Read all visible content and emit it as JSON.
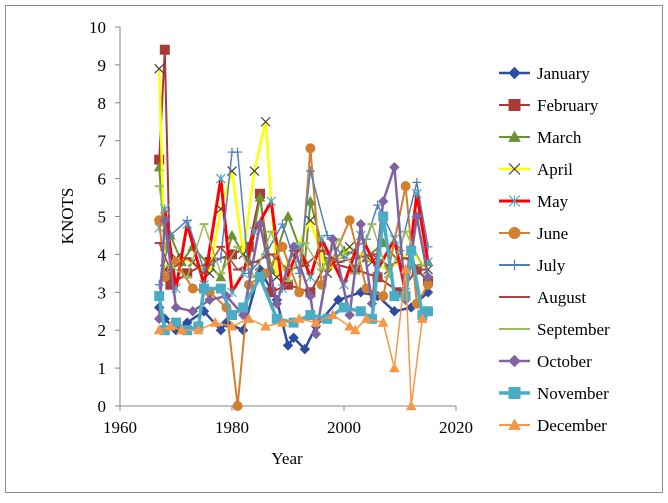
{
  "chart_data": {
    "type": "line",
    "title": "",
    "xlabel": "Year",
    "ylabel": "KNOTS",
    "xlim": [
      1960,
      2020
    ],
    "ylim": [
      0,
      10
    ],
    "xticks": [
      1960,
      1980,
      2000,
      2020
    ],
    "yticks": [
      0,
      1,
      2,
      3,
      4,
      5,
      6,
      7,
      8,
      9,
      10
    ],
    "grid": false,
    "legend_position": "right",
    "series": [
      {
        "name": "January",
        "color": "#2e4da0",
        "marker": "diamond",
        "line_width": 2.5,
        "x": [
          1967,
          1968,
          1970,
          1972,
          1975,
          1978,
          1979,
          1982,
          1985,
          1988,
          1990,
          1991,
          1993,
          1995,
          1999,
          2003,
          2006,
          2009,
          2012,
          2015
        ],
        "y": [
          2.6,
          2.3,
          2.0,
          2.2,
          2.5,
          2.0,
          2.2,
          2.0,
          3.6,
          2.8,
          1.6,
          1.8,
          1.5,
          2.1,
          2.8,
          3.0,
          2.9,
          2.5,
          2.6,
          3.0
        ]
      },
      {
        "name": "February",
        "color": "#a83a38",
        "marker": "square",
        "line_width": 2,
        "x": [
          1967,
          1968,
          1969,
          1972,
          1976,
          1980,
          1983,
          1985,
          1987,
          1990,
          1994,
          1997,
          2002,
          2006,
          2010,
          2013,
          2015
        ],
        "y": [
          6.5,
          9.4,
          3.2,
          3.5,
          3.8,
          4.0,
          4.2,
          5.6,
          3.0,
          3.2,
          3.0,
          3.8,
          3.6,
          3.4,
          3.0,
          3.6,
          3.3
        ]
      },
      {
        "name": "March",
        "color": "#6d9233",
        "marker": "triangle",
        "line_width": 2,
        "x": [
          1967,
          1968,
          1969,
          1971,
          1973,
          1976,
          1978,
          1980,
          1983,
          1985,
          1987,
          1990,
          1993,
          1994,
          1997,
          2000,
          2004,
          2007,
          2011,
          2015
        ],
        "y": [
          6.3,
          4.2,
          4.5,
          3.8,
          4.2,
          3.7,
          3.4,
          4.5,
          3.8,
          5.5,
          3.6,
          5.0,
          3.8,
          5.4,
          3.7,
          4.1,
          3.9,
          4.3,
          3.6,
          3.8
        ]
      },
      {
        "name": "April",
        "color": "#ffff00",
        "marker": "x",
        "line_width": 2.5,
        "x": [
          1967,
          1968,
          1970,
          1973,
          1976,
          1978,
          1980,
          1982,
          1984,
          1986,
          1988,
          1991,
          1994,
          1997,
          2001,
          2005,
          2008,
          2012,
          2015
        ],
        "y": [
          8.9,
          3.6,
          3.9,
          3.8,
          3.5,
          5.2,
          6.2,
          4.0,
          6.2,
          7.5,
          3.4,
          4.0,
          4.9,
          3.5,
          4.2,
          3.8,
          3.6,
          4.1,
          3.6
        ]
      },
      {
        "name": "May",
        "color": "#ff0000",
        "marker": "asterisk",
        "line_width": 3,
        "x": [
          1967,
          1968,
          1970,
          1972,
          1975,
          1978,
          1980,
          1982,
          1984,
          1987,
          1989,
          1992,
          1994,
          1996,
          2000,
          2003,
          2006,
          2009,
          2011,
          2013,
          2015
        ],
        "y": [
          4.7,
          5.2,
          3.1,
          4.8,
          3.2,
          6.0,
          3.0,
          3.5,
          4.6,
          5.4,
          3.1,
          4.2,
          3.4,
          4.4,
          3.2,
          4.5,
          3.6,
          4.4,
          3.0,
          5.6,
          3.8
        ]
      },
      {
        "name": "June",
        "color": "#d28030",
        "marker": "circle",
        "line_width": 2,
        "x": [
          1967,
          1968,
          1970,
          1973,
          1976,
          1979,
          1981,
          1983,
          1986,
          1989,
          1992,
          1994,
          1996,
          2001,
          2004,
          2007,
          2011,
          2013,
          2015
        ],
        "y": [
          4.9,
          3.4,
          3.8,
          3.1,
          3.0,
          2.6,
          0.0,
          3.2,
          3.5,
          4.2,
          3.0,
          6.8,
          3.2,
          4.9,
          3.1,
          2.9,
          5.8,
          2.7,
          3.2
        ]
      },
      {
        "name": "July",
        "color": "#4f81bd",
        "marker": "plus",
        "line_width": 1.5,
        "x": [
          1967,
          1969,
          1972,
          1975,
          1978,
          1980,
          1981,
          1983,
          1986,
          1989,
          1992,
          1994,
          1997,
          2000,
          2004,
          2006,
          2010,
          2013,
          2015
        ],
        "y": [
          3.2,
          4.5,
          4.9,
          3.6,
          3.9,
          6.7,
          6.7,
          3.5,
          4.0,
          4.8,
          3.5,
          6.2,
          4.5,
          3.9,
          4.4,
          5.3,
          4.1,
          5.9,
          4.2
        ]
      },
      {
        "name": "August",
        "color": "#b0413e",
        "marker": "dash",
        "line_width": 1.5,
        "x": [
          1967,
          1969,
          1972,
          1975,
          1978,
          1981,
          1984,
          1987,
          1990,
          1993,
          1996,
          1999,
          2002,
          2005,
          2008,
          2011,
          2014
        ],
        "y": [
          4.3,
          3.6,
          3.9,
          3.5,
          4.2,
          3.6,
          3.8,
          4.0,
          3.6,
          3.7,
          4.1,
          3.8,
          3.9,
          4.0,
          3.7,
          3.9,
          3.6
        ]
      },
      {
        "name": "September",
        "color": "#9bbb59",
        "marker": "dash",
        "line_width": 1.5,
        "x": [
          1967,
          1969,
          1972,
          1975,
          1978,
          1981,
          1984,
          1987,
          1990,
          1993,
          1996,
          1999,
          2002,
          2005,
          2008,
          2011,
          2014
        ],
        "y": [
          5.8,
          3.7,
          3.4,
          4.8,
          3.5,
          4.2,
          3.4,
          4.6,
          3.3,
          4.3,
          3.6,
          4.4,
          3.5,
          4.8,
          3.4,
          4.6,
          3.7
        ]
      },
      {
        "name": "October",
        "color": "#8064a2",
        "marker": "diamond",
        "line_width": 2.5,
        "x": [
          1967,
          1968,
          1970,
          1973,
          1976,
          1979,
          1982,
          1985,
          1988,
          1991,
          1994,
          1995,
          1998,
          2001,
          2003,
          2005,
          2007,
          2009,
          2011,
          2013,
          2015
        ],
        "y": [
          2.3,
          4.9,
          2.6,
          2.5,
          2.8,
          2.9,
          2.4,
          4.8,
          2.7,
          4.2,
          2.9,
          1.9,
          4.4,
          2.4,
          4.8,
          2.7,
          5.4,
          6.3,
          2.8,
          5.0,
          3.4
        ]
      },
      {
        "name": "November",
        "color": "#4bacc6",
        "marker": "square",
        "line_width": 3.5,
        "x": [
          1967,
          1968,
          1970,
          1972,
          1974,
          1975,
          1978,
          1980,
          1982,
          1985,
          1988,
          1991,
          1994,
          1997,
          2000,
          2003,
          2005,
          2007,
          2009,
          2011,
          2012,
          2014,
          2015
        ],
        "y": [
          2.9,
          2.0,
          2.2,
          2.0,
          2.1,
          3.1,
          3.1,
          2.4,
          2.6,
          3.4,
          2.3,
          2.2,
          2.4,
          2.3,
          2.6,
          2.5,
          2.3,
          5.0,
          2.9,
          2.9,
          4.1,
          2.4,
          2.5
        ]
      },
      {
        "name": "December",
        "color": "#f79646",
        "marker": "triangle",
        "line_width": 1.5,
        "x": [
          1967,
          1969,
          1971,
          1974,
          1977,
          1980,
          1983,
          1986,
          1989,
          1992,
          1995,
          1998,
          2001,
          2002,
          2004,
          2007,
          2009,
          2011,
          2012,
          2014
        ],
        "y": [
          2.0,
          2.1,
          2.0,
          2.0,
          2.2,
          2.1,
          2.3,
          2.1,
          2.2,
          2.3,
          2.2,
          2.4,
          2.1,
          2.0,
          2.3,
          2.2,
          1.0,
          3.6,
          0.0,
          2.3
        ]
      }
    ]
  }
}
